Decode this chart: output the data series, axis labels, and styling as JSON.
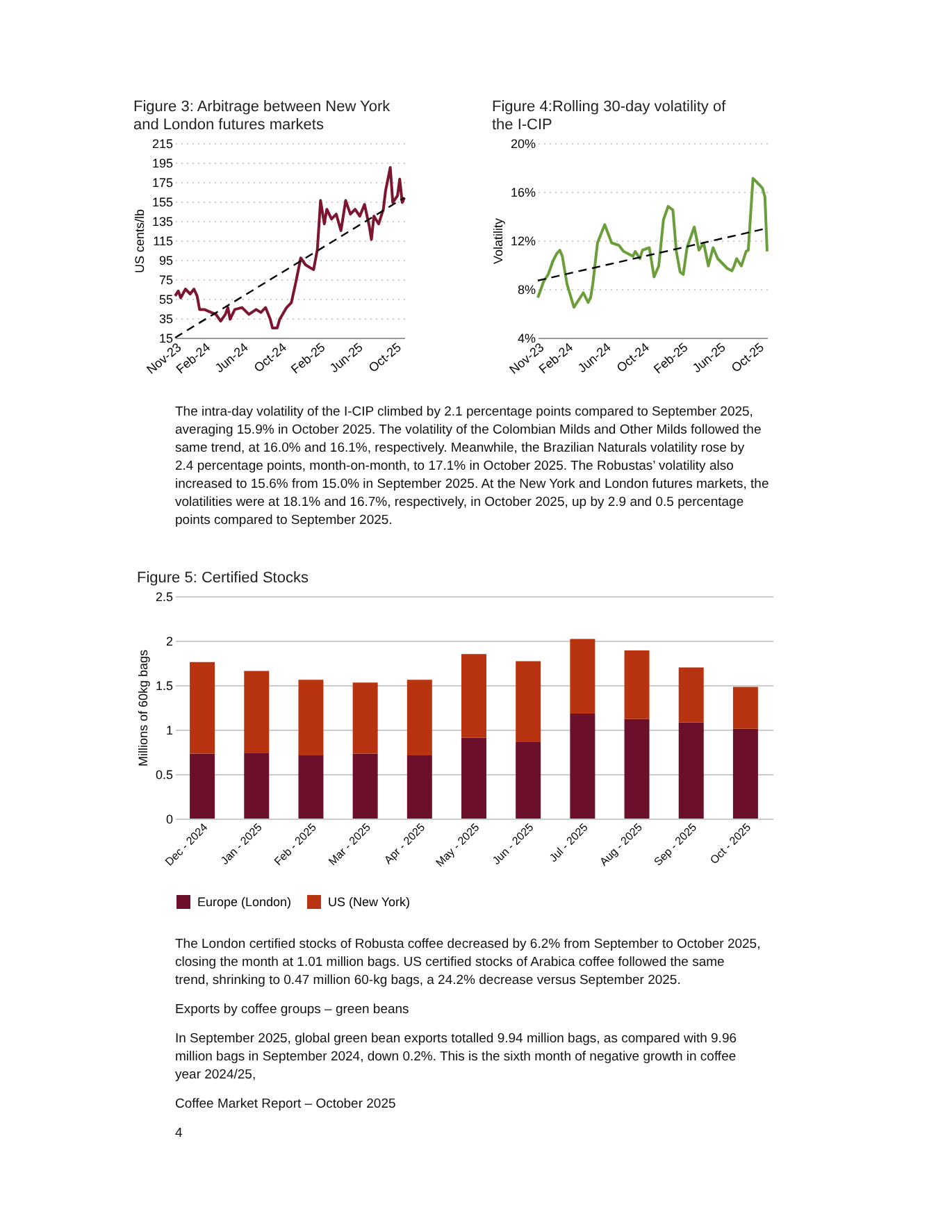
{
  "chart_data": [
    {
      "type": "line",
      "title": "Figure 3:  Arbitrage between New York and London futures markets",
      "ylabel": "US cents/lb",
      "x": [
        "2023-11-01",
        "2023-11-11",
        "2023-11-19",
        "2023-12-04",
        "2023-12-19",
        "2023-12-31",
        "2024-01-10",
        "2024-01-18",
        "2024-02-02",
        "2024-02-24",
        "2024-03-10",
        "2024-03-25",
        "2024-04-09",
        "2024-04-17",
        "2024-04-24",
        "2024-05-09",
        "2024-06-01",
        "2024-06-23",
        "2024-07-16",
        "2024-07-31",
        "2024-08-15",
        "2024-08-30",
        "2024-09-06",
        "2024-09-21",
        "2024-09-29",
        "2024-10-21",
        "2024-11-05",
        "2024-11-20",
        "2024-12-05",
        "2024-12-20",
        "2025-01-04",
        "2025-01-15",
        "2025-01-27",
        "2025-02-06",
        "2025-02-18",
        "2025-02-26",
        "2025-03-13",
        "2025-03-28",
        "2025-04-12",
        "2025-04-27",
        "2025-05-12",
        "2025-05-27",
        "2025-06-11",
        "2025-06-26",
        "2025-07-11",
        "2025-07-18",
        "2025-07-26",
        "2025-08-10",
        "2025-08-25",
        "2025-09-01",
        "2025-09-16",
        "2025-09-24",
        "2025-10-09",
        "2025-10-16",
        "2025-10-24",
        "2025-10-31"
      ],
      "series": [
        {
          "color": "#7b1530",
          "values": [
            58,
            63,
            56,
            65,
            60,
            65,
            58,
            44,
            44,
            41,
            39,
            32,
            39,
            46,
            34,
            44,
            46,
            39,
            44,
            41,
            46,
            34,
            25,
            25,
            34,
            46,
            51,
            73,
            97,
            90,
            87,
            85,
            106,
            156,
            132,
            147,
            137,
            142,
            125,
            156,
            142,
            147,
            140,
            152,
            130,
            116,
            140,
            132,
            147,
            166,
            190,
            154,
            161,
            178,
            154,
            159
          ]
        },
        {
          "type": "line",
          "color": "#000000",
          "line_style": "dashed",
          "x": [
            "2023-11-01",
            "2025-10-31"
          ],
          "values": [
            15,
            159
          ]
        }
      ],
      "xlim": [
        "2023-11-01",
        "2025-10-31"
      ],
      "xticks": [
        {
          "value": "2023-11-01",
          "label": "Nov-23"
        },
        {
          "value": "2024-02-01",
          "label": "Feb-24"
        },
        {
          "value": "2024-06-01",
          "label": "Jun-24"
        },
        {
          "value": "2024-10-01",
          "label": "Oct-24"
        },
        {
          "value": "2025-02-01",
          "label": "Feb-25"
        },
        {
          "value": "2025-06-01",
          "label": "Jun-25"
        },
        {
          "value": "2025-10-01",
          "label": "Oct-25"
        }
      ],
      "ylim": [
        15,
        215
      ],
      "yticks": [
        15,
        35,
        55,
        75,
        95,
        115,
        135,
        155,
        175,
        195,
        215
      ],
      "grid": "y"
    },
    {
      "type": "line",
      "title": "Figure 4:Rolling 30-day volatility of the I-CIP",
      "ylabel": "Volatility",
      "x": [
        "2023-11-01",
        "2023-11-11",
        "2023-11-19",
        "2023-12-04",
        "2023-12-19",
        "2023-12-31",
        "2024-01-10",
        "2024-01-18",
        "2024-02-02",
        "2024-02-24",
        "2024-03-10",
        "2024-03-25",
        "2024-04-09",
        "2024-04-17",
        "2024-04-24",
        "2024-05-09",
        "2024-06-01",
        "2024-06-23",
        "2024-07-16",
        "2024-07-31",
        "2024-08-15",
        "2024-08-30",
        "2024-09-06",
        "2024-09-21",
        "2024-09-29",
        "2024-10-21",
        "2024-11-05",
        "2024-11-20",
        "2024-12-05",
        "2024-12-20",
        "2025-01-04",
        "2025-01-15",
        "2025-01-27",
        "2025-02-06",
        "2025-02-18",
        "2025-02-26",
        "2025-03-13",
        "2025-03-28",
        "2025-04-12",
        "2025-04-27",
        "2025-05-12",
        "2025-05-27",
        "2025-06-11",
        "2025-06-26",
        "2025-07-11",
        "2025-07-18",
        "2025-07-26",
        "2025-08-10",
        "2025-08-25",
        "2025-09-01",
        "2025-09-16",
        "2025-09-24",
        "2025-10-09",
        "2025-10-16",
        "2025-10-24",
        "2025-10-31"
      ],
      "series": [
        {
          "color": "#6b9e3a",
          "values": [
            7.3,
            8.0,
            8.6,
            9.2,
            10.3,
            10.9,
            11.2,
            10.7,
            8.4,
            6.5,
            7.1,
            7.7,
            6.9,
            7.3,
            8.4,
            11.8,
            13.3,
            11.8,
            11.6,
            11.1,
            10.9,
            10.7,
            11.1,
            10.5,
            11.2,
            11.4,
            9.0,
            9.9,
            13.7,
            14.8,
            14.5,
            11.1,
            9.4,
            9.2,
            11.4,
            12.0,
            13.1,
            11.2,
            11.8,
            9.9,
            11.4,
            10.5,
            10.1,
            9.7,
            9.5,
            9.9,
            10.5,
            9.9,
            11.1,
            11.2,
            17.1,
            16.9,
            16.5,
            16.3,
            15.6,
            11.1
          ]
        },
        {
          "type": "line",
          "color": "#000000",
          "line_style": "dashed",
          "x": [
            "2023-11-01",
            "2025-10-31"
          ],
          "values": [
            8.7,
            13.0
          ]
        }
      ],
      "xlim": [
        "2023-11-01",
        "2025-10-31"
      ],
      "xticks": [
        {
          "value": "2023-11-01",
          "label": "Nov-23"
        },
        {
          "value": "2024-02-01",
          "label": "Feb-24"
        },
        {
          "value": "2024-06-01",
          "label": "Jun-24"
        },
        {
          "value": "2024-10-01",
          "label": "Oct-24"
        },
        {
          "value": "2025-02-01",
          "label": "Feb-25"
        },
        {
          "value": "2025-06-01",
          "label": "Jun-25"
        },
        {
          "value": "2025-10-01",
          "label": "Oct-25"
        }
      ],
      "ylim": [
        4,
        20
      ],
      "yticks": [
        {
          "value": 4,
          "label": "4%"
        },
        {
          "value": 8,
          "label": "8%"
        },
        {
          "value": 12,
          "label": "12%"
        },
        {
          "value": 16,
          "label": "16%"
        },
        {
          "value": 20,
          "label": "20%"
        }
      ],
      "grid": "y",
      "annotations": [
        "The intra-day volatility of the I-CIP climbed by 2.1 percentage points compared to September 2025, averaging 15.9% in October 2025. The volatility of the Colombian Milds and Other Milds followed the same trend, at 16.0% and 16.1%, respectively. Meanwhile, the Brazilian Naturals volatility rose by 2.4 percentage points, month-on-month, to 17.1% in October 2025. The Robustas’ volatility also increased to 15.6% from 15.0% in September 2025.  At the New York and London futures markets, the volatilities were at 18.1% and 16.7%, respectively, in October 2025, up by 2.9 and 0.5 percentage points compared to September 2025."
      ]
    },
    {
      "type": "bar",
      "title": "Figure 5: Certified Stocks",
      "ylabel": "Millions of 60kg bags",
      "stacked": true,
      "categories": [
        "Dec - 2024",
        "Jan - 2025",
        "Feb - 2025",
        "Mar - 2025",
        "Apr - 2025",
        "May - 2025",
        "Jun - 2025",
        "Jul - 2025",
        "Aug - 2025",
        "Sep - 2025",
        "Oct - 2025"
      ],
      "series": [
        {
          "name": "Europe (London)",
          "color": "#6b0f2a",
          "values": [
            0.73,
            0.74,
            0.71,
            0.73,
            0.71,
            0.91,
            0.86,
            1.18,
            1.12,
            1.08,
            1.01
          ]
        },
        {
          "name": "US (New York)",
          "color": "#b83410",
          "values": [
            1.03,
            0.92,
            0.85,
            0.8,
            0.85,
            0.94,
            0.91,
            0.84,
            0.77,
            0.62,
            0.47
          ]
        }
      ],
      "ylim": [
        0,
        2.5
      ],
      "yticks": [
        0,
        0.5,
        1,
        1.5,
        2,
        2.5
      ],
      "grid": "y",
      "legend": "bottom",
      "annotations": [
        "The London certified stocks of Robusta coffee decreased by 6.2% from September to October 2025, closing the month at 1.01 million bags. US certified stocks of Arabica coffee followed the same trend, shrinking to 0.47 million 60-kg bags, a 24.2% decrease versus September 2025.",
        "Exports by coffee groups – green beans",
        "In September 2025, global green bean exports totalled 9.94 million bags, as compared with 9.96 million bags in September 2024, down 0.2%.  This is the sixth month of negative growth in coffee year 2024/25,",
        "Coffee Market Report – October 2025",
        "4"
      ]
    }
  ]
}
